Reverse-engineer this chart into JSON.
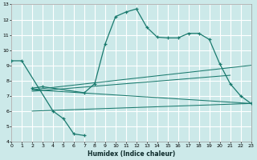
{
  "xlabel": "Humidex (Indice chaleur)",
  "xlim": [
    0,
    23
  ],
  "ylim": [
    4,
    13
  ],
  "xticks": [
    0,
    1,
    2,
    3,
    4,
    5,
    6,
    7,
    8,
    9,
    10,
    11,
    12,
    13,
    14,
    15,
    16,
    17,
    18,
    19,
    20,
    21,
    22,
    23
  ],
  "yticks": [
    4,
    5,
    6,
    7,
    8,
    9,
    10,
    11,
    12,
    13
  ],
  "bg_color": "#cce9e9",
  "grid_color": "#ffffff",
  "line_color": "#1a7a6e",
  "curve1_x": [
    0,
    1,
    4,
    5,
    6,
    7
  ],
  "curve1_y": [
    9.3,
    9.3,
    6.0,
    5.5,
    4.5,
    4.4
  ],
  "curve2_x": [
    2,
    3,
    7,
    8,
    9,
    10,
    11,
    12,
    13,
    14,
    15,
    16,
    17,
    18,
    19,
    20,
    21,
    22,
    23
  ],
  "curve2_y": [
    7.5,
    7.6,
    7.2,
    7.8,
    10.4,
    12.2,
    12.5,
    12.7,
    11.5,
    10.85,
    10.8,
    10.8,
    11.1,
    11.1,
    10.7,
    9.1,
    7.8,
    7.0,
    6.5
  ],
  "line1_x": [
    2,
    23
  ],
  "line1_y": [
    7.4,
    9.0
  ],
  "line2_x": [
    2,
    21
  ],
  "line2_y": [
    7.3,
    8.35
  ],
  "line3_x": [
    2,
    23
  ],
  "line3_y": [
    6.0,
    6.5
  ],
  "line4_x": [
    2,
    23
  ],
  "line4_y": [
    7.4,
    6.5
  ]
}
